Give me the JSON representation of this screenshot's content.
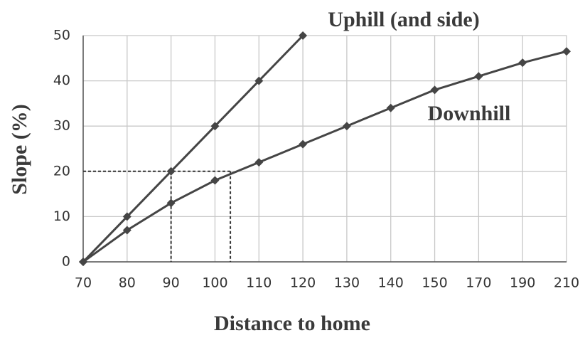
{
  "chart_data": {
    "type": "line",
    "categories": [
      70,
      80,
      90,
      100,
      110,
      120,
      130,
      140,
      150,
      170,
      190,
      210
    ],
    "series": [
      {
        "name": "Uphill (and side)",
        "color": "#454545",
        "values": [
          0,
          10,
          20,
          30,
          40,
          50,
          null,
          null,
          null,
          null,
          null,
          null
        ]
      },
      {
        "name": "Downhill",
        "color": "#454545",
        "values": [
          0,
          7,
          13,
          18,
          22,
          26,
          30,
          34,
          38,
          41,
          44,
          46.5
        ]
      }
    ],
    "guides": [
      {
        "x": 90,
        "y": 20
      },
      {
        "x": 103.5,
        "y": 20
      }
    ],
    "xlabel": "Distance to home",
    "ylabel": "Slope (%)",
    "ylim": [
      0,
      50
    ],
    "yticks": [
      0,
      10,
      20,
      30,
      40,
      50
    ],
    "grid": true
  }
}
